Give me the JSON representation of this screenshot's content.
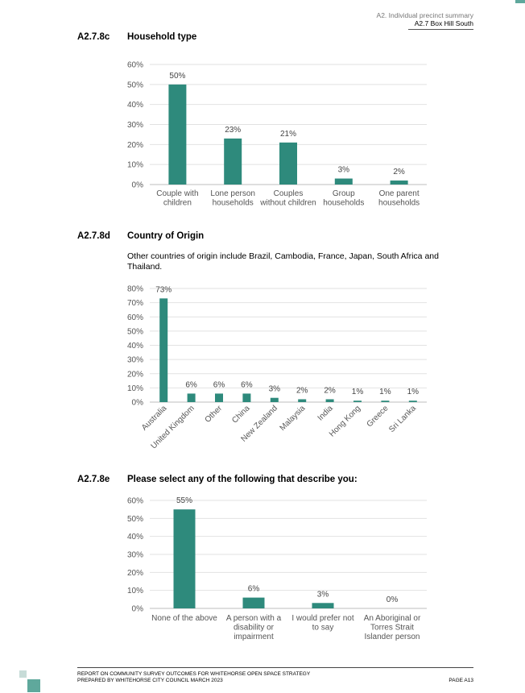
{
  "header": {
    "section": "A2. Individual precinct summary",
    "subsection": "A2.7 Box Hill South"
  },
  "sections": [
    {
      "num": "A2.7.8c",
      "title": "Household type"
    },
    {
      "num": "A2.7.8d",
      "title": "Country of Origin"
    },
    {
      "num": "A2.7.8e",
      "title": "Please select any of the following that describe you:"
    }
  ],
  "origin_note": "Other countries of origin include Brazil, Cambodia, France, Japan, South Africa and Thailand.",
  "colors": {
    "bar": "#2e8a7c",
    "accent": "#5fa89c"
  },
  "chart_data": [
    {
      "type": "bar",
      "title": "",
      "categories": [
        [
          "Couple with",
          "children"
        ],
        [
          "Lone person",
          "households"
        ],
        [
          "Couples",
          "without children"
        ],
        [
          "Group",
          "households"
        ],
        [
          "One parent",
          "households"
        ]
      ],
      "values": [
        50,
        23,
        21,
        3,
        2
      ],
      "data_labels": [
        "50%",
        "23%",
        "21%",
        "3%",
        "2%"
      ],
      "yticks": [
        "0%",
        "10%",
        "20%",
        "30%",
        "40%",
        "50%",
        "60%"
      ],
      "ylim": [
        0,
        60
      ],
      "grid": true
    },
    {
      "type": "bar",
      "title": "",
      "categories": [
        "Australia",
        "United Kingdom",
        "Other",
        "China",
        "New Zealand",
        "Malaysia",
        "India",
        "Hong Kong",
        "Greece",
        "Sri Lanka"
      ],
      "values": [
        73,
        6,
        6,
        6,
        3,
        2,
        2,
        1,
        1,
        1
      ],
      "data_labels": [
        "73%",
        "6%",
        "6%",
        "6%",
        "3%",
        "2%",
        "2%",
        "1%",
        "1%",
        "1%"
      ],
      "yticks": [
        "0%",
        "10%",
        "20%",
        "30%",
        "40%",
        "50%",
        "60%",
        "70%",
        "80%"
      ],
      "ylim": [
        0,
        80
      ],
      "grid": true
    },
    {
      "type": "bar",
      "title": "",
      "categories": [
        [
          "None of the above"
        ],
        [
          "A person with a",
          "disability or",
          "impairment"
        ],
        [
          "I would prefer not",
          "to say"
        ],
        [
          "An Aboriginal or",
          "Torres Strait",
          "Islander person"
        ]
      ],
      "values": [
        55,
        6,
        3,
        0
      ],
      "data_labels": [
        "55%",
        "6%",
        "3%",
        "0%"
      ],
      "yticks": [
        "0%",
        "10%",
        "20%",
        "30%",
        "40%",
        "50%",
        "60%"
      ],
      "ylim": [
        0,
        60
      ],
      "grid": true
    }
  ],
  "footer": {
    "line1": "REPORT ON COMMUNITY SURVEY OUTCOMES FOR WHITEHORSE OPEN SPACE STRATEGY",
    "line2": "PREPARED BY WHITEHORSE CITY COUNCIL MARCH 2023",
    "page": "PAGE A13"
  }
}
